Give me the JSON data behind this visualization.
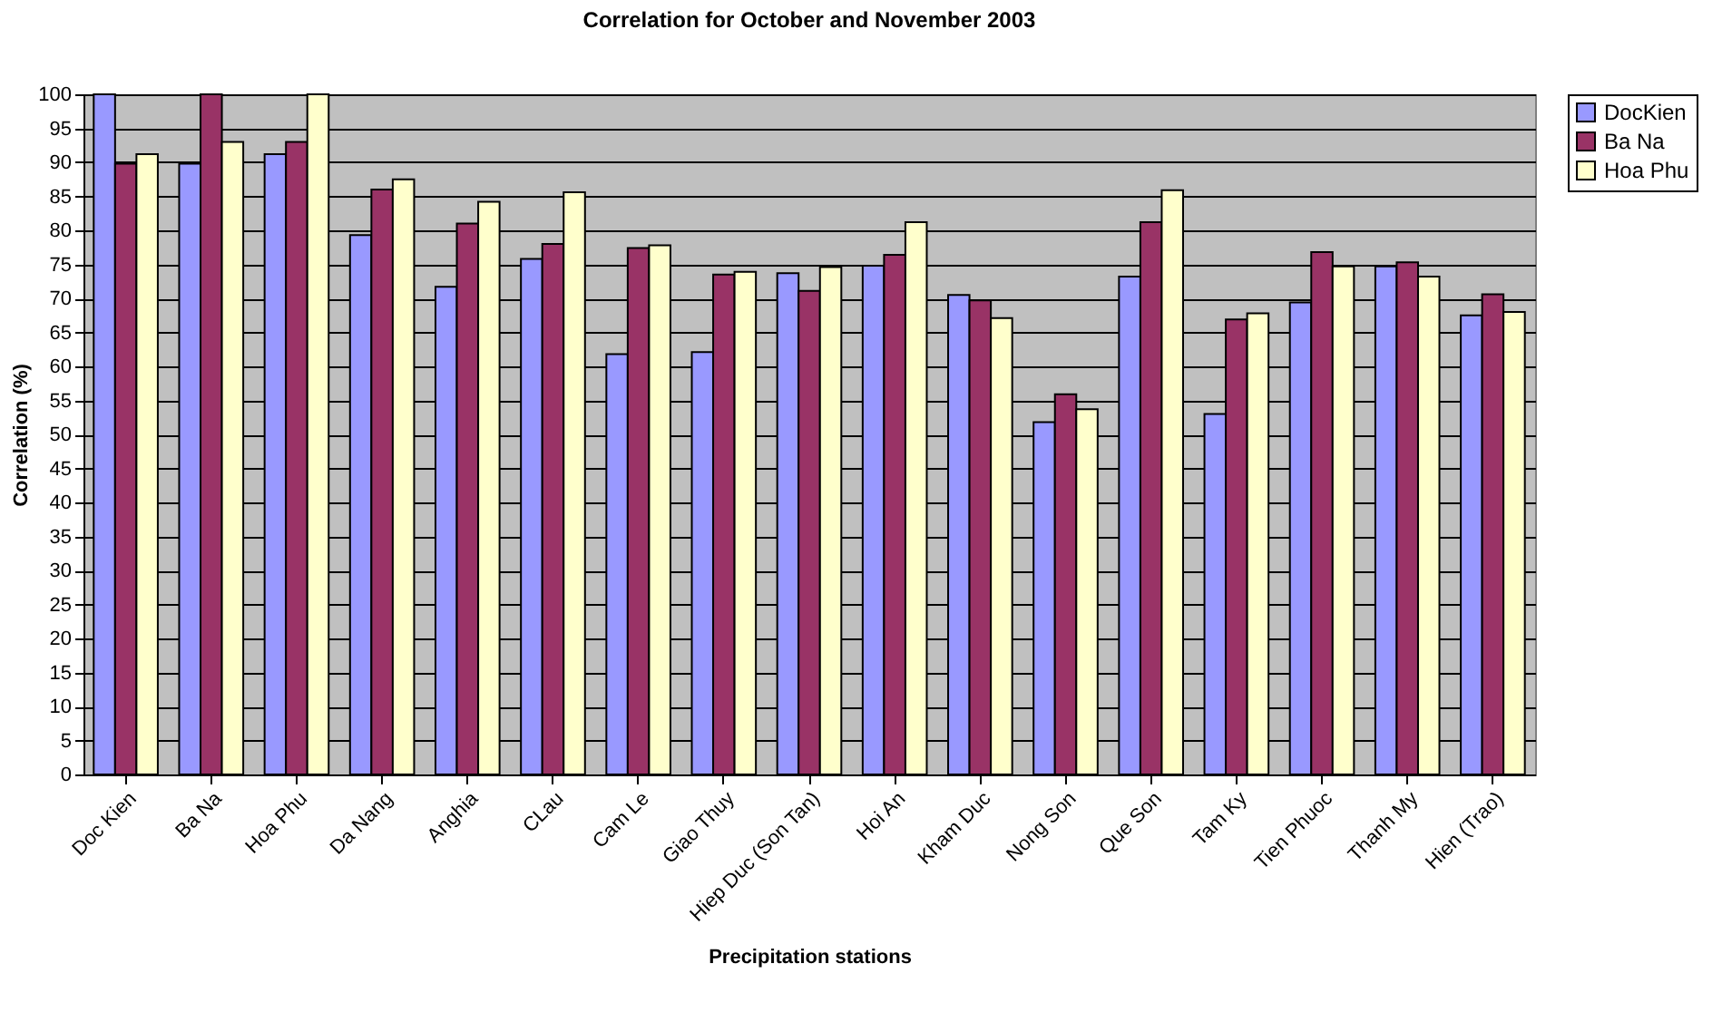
{
  "chart_data": {
    "type": "bar",
    "title": "Correlation for October and November 2003",
    "xlabel": "Precipitation stations",
    "ylabel": "Correlation (%)",
    "categories": [
      "Doc Kien",
      "Ba Na",
      "Hoa Phu",
      "Da Nang",
      "Anghia",
      "CLau",
      "Cam Le",
      "Giao Thuy",
      "Hiep Duc (Son Tan)",
      "Hoi An",
      "Kham Duc",
      "Nong Son",
      "Que Son",
      "Tam Ky",
      "Tien Phuoc",
      "Thanh My",
      "Hien (Trao)"
    ],
    "series": [
      {
        "name": "DocKien",
        "color": "#9999ff",
        "values": [
          100,
          89.8,
          91.2,
          79.3,
          71.7,
          75.8,
          61.8,
          62.1,
          73.7,
          74.8,
          70.5,
          51.8,
          73.2,
          53,
          69.4,
          74.7,
          67.5
        ]
      },
      {
        "name": "Ba Na",
        "color": "#993366",
        "values": [
          89.8,
          100,
          93,
          86,
          81,
          78,
          77.4,
          73.5,
          71.1,
          76.4,
          69.7,
          55.9,
          81.2,
          66.9,
          76.8,
          75.3,
          70.6
        ]
      },
      {
        "name": "Hoa Phu",
        "color": "#ffffcc",
        "values": [
          91.2,
          93,
          100,
          87.5,
          84.2,
          85.6,
          77.8,
          73.9,
          74.6,
          81.2,
          67.1,
          53.7,
          85.9,
          67.8,
          74.7,
          73.2,
          68
        ]
      }
    ],
    "ylim": [
      0,
      100
    ],
    "yticks": [
      0,
      5,
      10,
      15,
      20,
      25,
      30,
      35,
      40,
      45,
      50,
      55,
      60,
      65,
      70,
      75,
      80,
      85,
      90,
      95,
      100
    ],
    "grid": "y",
    "legend": "right"
  }
}
